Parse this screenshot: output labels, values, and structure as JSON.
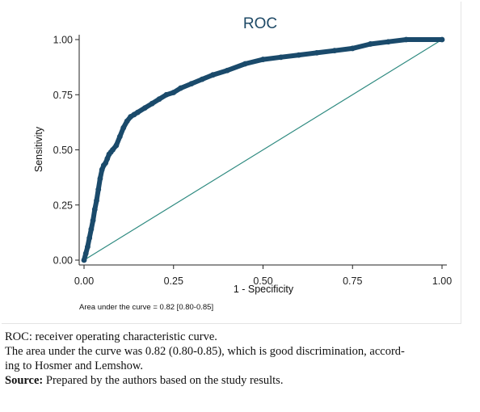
{
  "chart_data": {
    "type": "line",
    "title": "ROC",
    "xlabel": "1 - Specificity",
    "ylabel": "Sensitivity",
    "xlim": [
      0,
      1
    ],
    "ylim": [
      0,
      1
    ],
    "x_ticks": [
      "0.00",
      "0.25",
      "0.50",
      "0.75",
      "1.00"
    ],
    "y_ticks": [
      "0.00",
      "0.25",
      "0.50",
      "0.75",
      "1.00"
    ],
    "grid": false,
    "legend": "none",
    "note": "Area under the curve = 0.82 [0.80-0.85]",
    "colors": {
      "title": "#1e4966",
      "curve": "#1a4a6b",
      "reference": "#2e8a80"
    },
    "series": [
      {
        "x": [
          0.0,
          0.005,
          0.01,
          0.015,
          0.02,
          0.025,
          0.03,
          0.035,
          0.04,
          0.045,
          0.05,
          0.055,
          0.06,
          0.065,
          0.07,
          0.075,
          0.08,
          0.09,
          0.1,
          0.11,
          0.12,
          0.13,
          0.14,
          0.15,
          0.17,
          0.19,
          0.21,
          0.23,
          0.25,
          0.27,
          0.3,
          0.33,
          0.36,
          0.4,
          0.45,
          0.5,
          0.55,
          0.6,
          0.65,
          0.7,
          0.75,
          0.8,
          0.85,
          0.9,
          1.0
        ],
        "y": [
          0.0,
          0.03,
          0.06,
          0.1,
          0.14,
          0.18,
          0.23,
          0.27,
          0.32,
          0.37,
          0.41,
          0.43,
          0.44,
          0.46,
          0.48,
          0.49,
          0.5,
          0.52,
          0.56,
          0.6,
          0.63,
          0.65,
          0.66,
          0.67,
          0.69,
          0.71,
          0.73,
          0.75,
          0.76,
          0.78,
          0.8,
          0.82,
          0.84,
          0.86,
          0.89,
          0.91,
          0.92,
          0.93,
          0.94,
          0.95,
          0.96,
          0.98,
          0.99,
          1.0,
          1.0
        ]
      },
      {
        "x": [
          0,
          1
        ],
        "y": [
          0,
          1
        ]
      }
    ]
  },
  "caption": {
    "line1": "ROC: receiver operating characteristic curve.",
    "line2": "The area under the curve was 0.82 (0.80-0.85), which is good discrimination, accord-",
    "line3": "ing to Hosmer and Lemshow.",
    "source_label": "Source:",
    "source_text": " Prepared by the authors based on the study results."
  }
}
